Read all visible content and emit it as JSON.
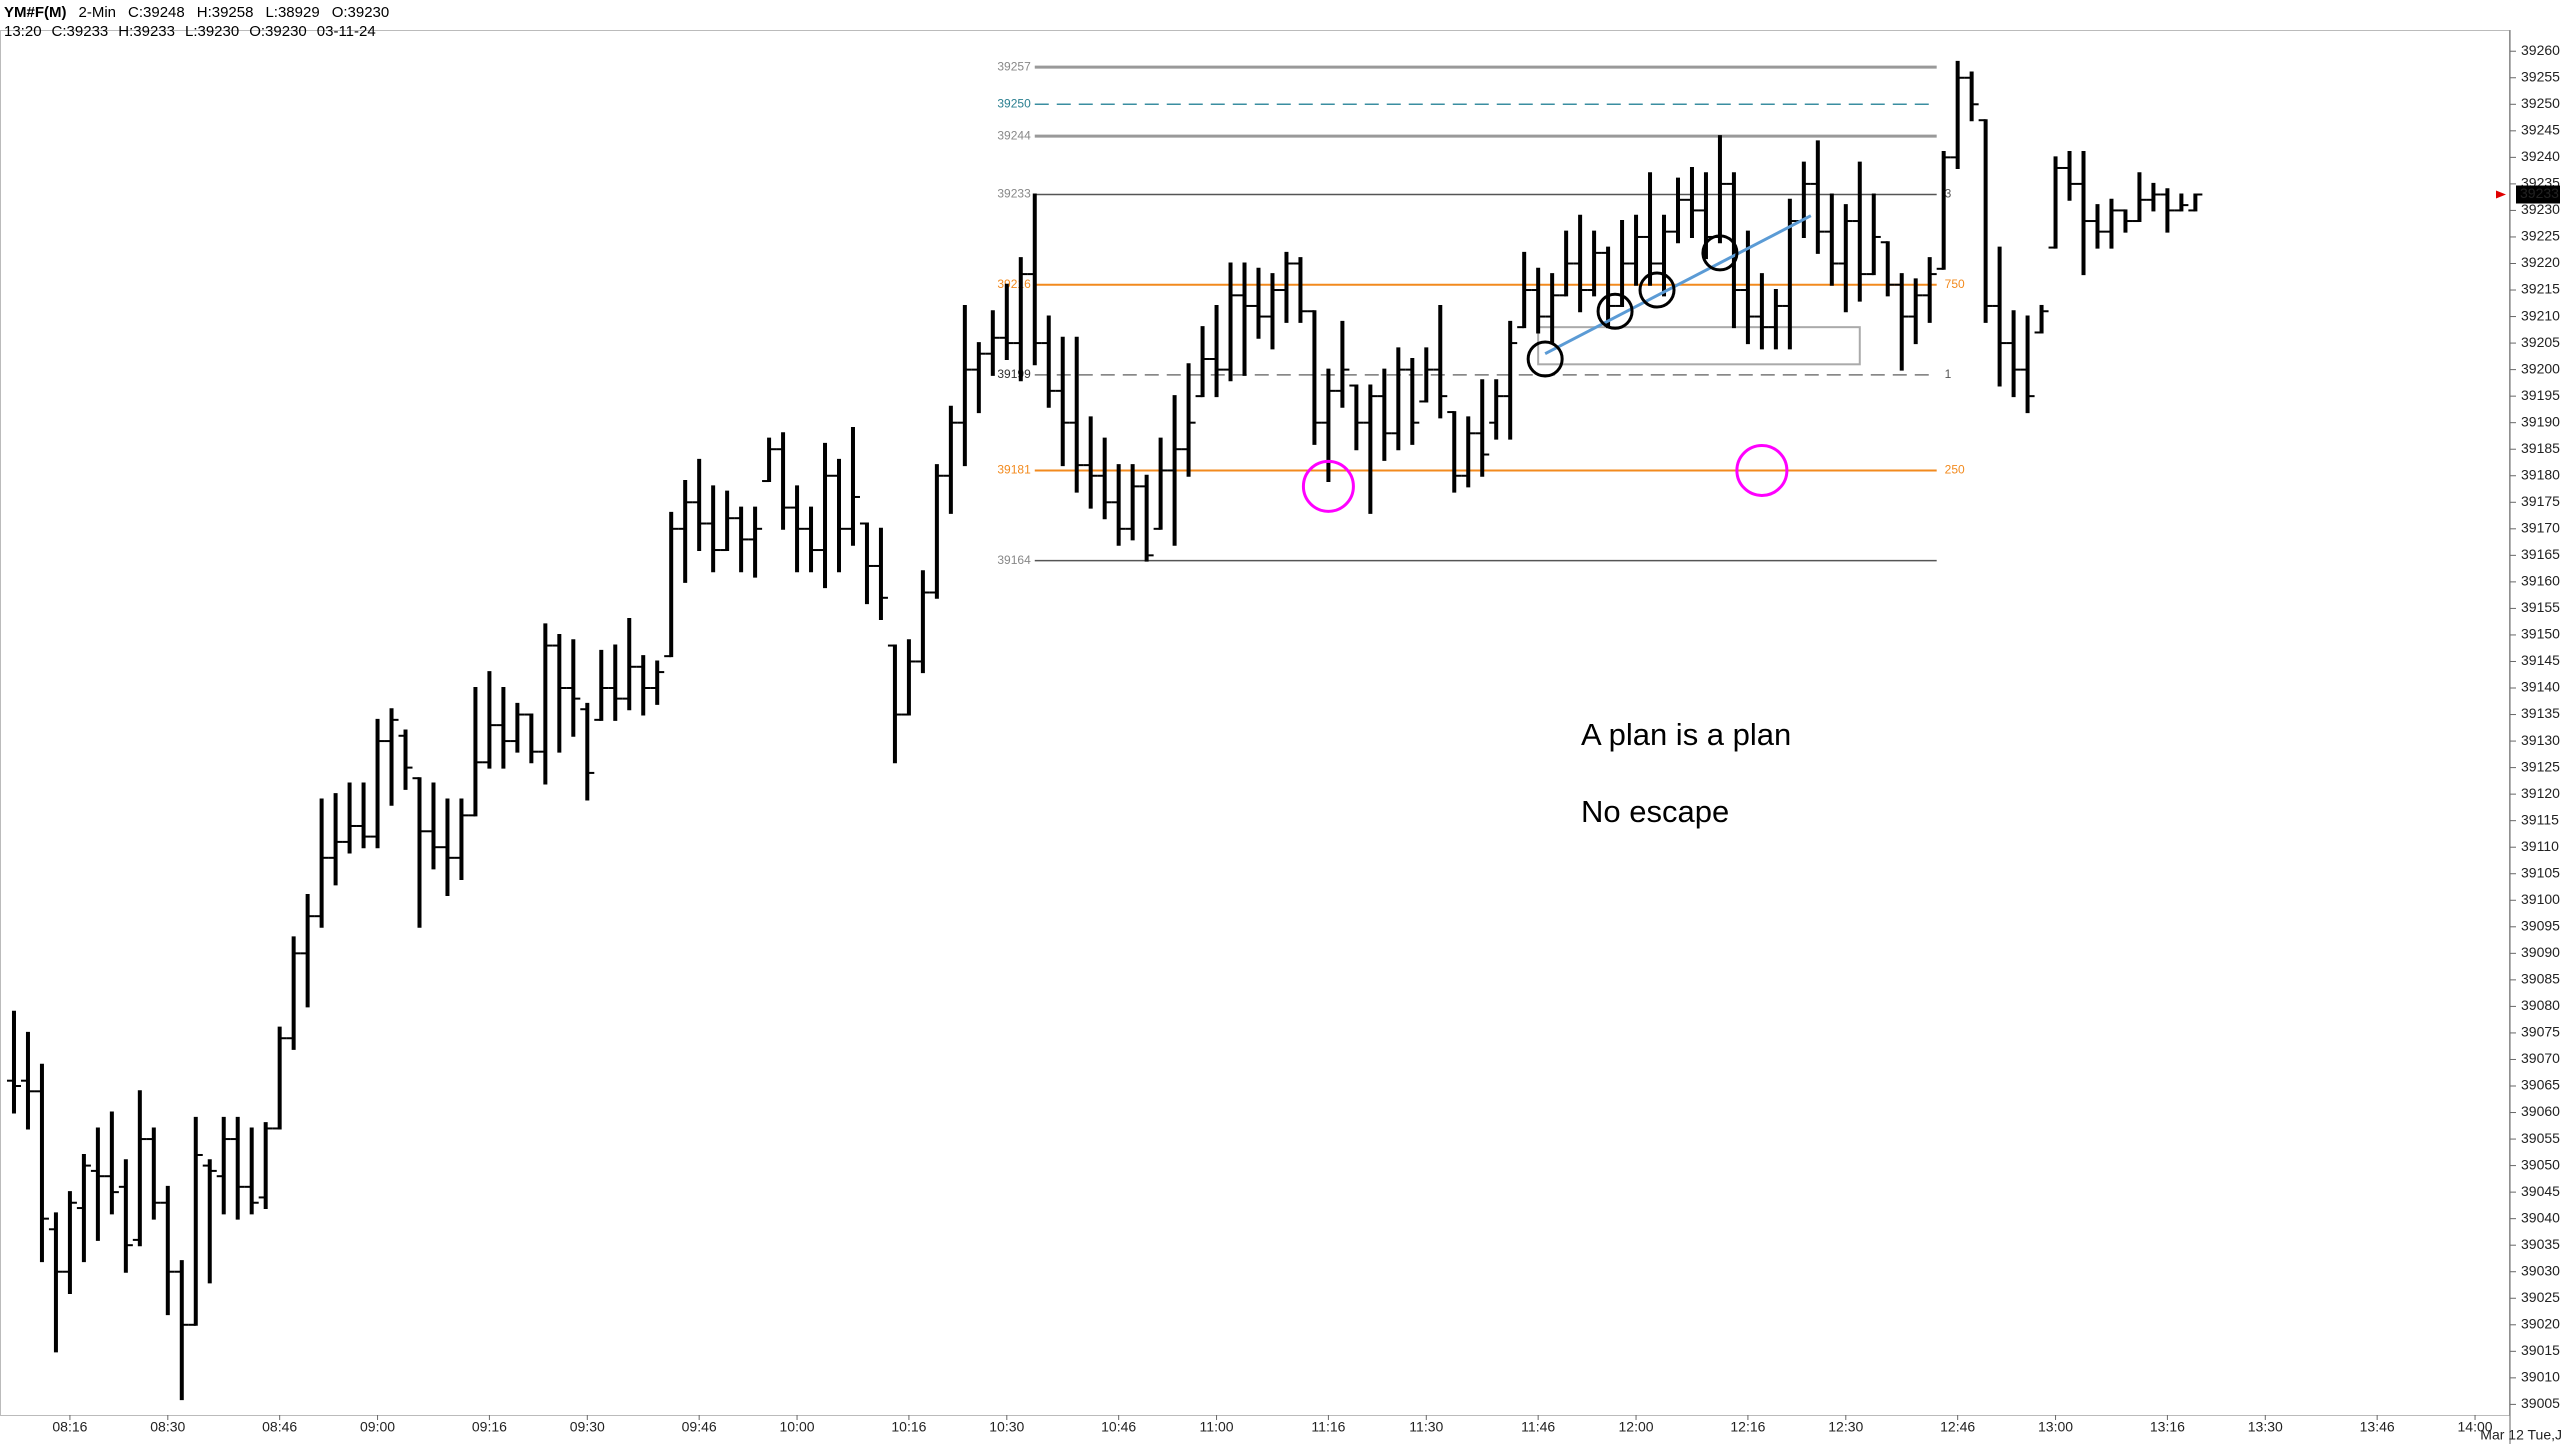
{
  "chart_data": {
    "type": "ohlc",
    "header": {
      "line1": [
        "YM#F(M)",
        "2-Min",
        "C:39248",
        "H:39258",
        "L:38929",
        "O:39230"
      ],
      "line2": [
        "13:20",
        "C:39233",
        "H:39233",
        "L:39230",
        "O:39230",
        "03-11-24"
      ]
    },
    "x": [
      488,
      490,
      492,
      494,
      496,
      498,
      500,
      502,
      504,
      506,
      508,
      510,
      512,
      514,
      516,
      518,
      520,
      522,
      524,
      526,
      528,
      530,
      532,
      534,
      536,
      538,
      540,
      542,
      544,
      546,
      548,
      550,
      552,
      554,
      556,
      558,
      560,
      562,
      564,
      566,
      568,
      570,
      572,
      574,
      576,
      578,
      580,
      582,
      584,
      586,
      588,
      590,
      592,
      594,
      596,
      598,
      600,
      602,
      604,
      606,
      608,
      610,
      612,
      614,
      616,
      618,
      620,
      622,
      624,
      626,
      628,
      630,
      632,
      634,
      636,
      638,
      640,
      642,
      644,
      646,
      648,
      650,
      652,
      654,
      656,
      658,
      660,
      662,
      664,
      666,
      668,
      670,
      672,
      674,
      676,
      678,
      680,
      682,
      684,
      686,
      688,
      690,
      692,
      694,
      696,
      698,
      700,
      702,
      704,
      706,
      708,
      710,
      712,
      714,
      716,
      718,
      720,
      722,
      724,
      726,
      728,
      730,
      732,
      734,
      736,
      738,
      740,
      742,
      744,
      746,
      748,
      750,
      752,
      754,
      756,
      758,
      760,
      762,
      764,
      766,
      768,
      770,
      772,
      774,
      776,
      778,
      780,
      782,
      784,
      786,
      788,
      790,
      792,
      794,
      796,
      798,
      800
    ],
    "bars": [
      [
        39066,
        39079,
        39060,
        39065
      ],
      [
        39066,
        39075,
        39057,
        39064
      ],
      [
        39064,
        39069,
        39032,
        39040
      ],
      [
        39038,
        39041,
        39015,
        39030
      ],
      [
        39030,
        39045,
        39026,
        39043
      ],
      [
        39042,
        39052,
        39032,
        39050
      ],
      [
        39049,
        39057,
        39036,
        39048
      ],
      [
        39048,
        39060,
        39041,
        39045
      ],
      [
        39046,
        39051,
        39030,
        39035
      ],
      [
        39036,
        39064,
        39035,
        39055
      ],
      [
        39055,
        39057,
        39040,
        39043
      ],
      [
        39043,
        39046,
        39022,
        39030
      ],
      [
        39030,
        39032,
        39006,
        39020
      ],
      [
        39020,
        39059,
        39020,
        39052
      ],
      [
        39050,
        39051,
        39028,
        39049
      ],
      [
        39048,
        39059,
        39041,
        39055
      ],
      [
        39055,
        39059,
        39040,
        39046
      ],
      [
        39046,
        39057,
        39041,
        39043
      ],
      [
        39044,
        39058,
        39042,
        39057
      ],
      [
        39057,
        39076,
        39057,
        39074
      ],
      [
        39074,
        39093,
        39072,
        39090
      ],
      [
        39090,
        39101,
        39080,
        39097
      ],
      [
        39097,
        39119,
        39095,
        39108
      ],
      [
        39108,
        39120,
        39103,
        39111
      ],
      [
        39111,
        39122,
        39109,
        39114
      ],
      [
        39114,
        39122,
        39110,
        39112
      ],
      [
        39112,
        39134,
        39110,
        39130
      ],
      [
        39130,
        39136,
        39118,
        39134
      ],
      [
        39131,
        39132,
        39121,
        39125
      ],
      [
        39123,
        39123,
        39095,
        39113
      ],
      [
        39113,
        39122,
        39106,
        39110
      ],
      [
        39110,
        39119,
        39101,
        39108
      ],
      [
        39108,
        39119,
        39104,
        39116
      ],
      [
        39116,
        39140,
        39116,
        39126
      ],
      [
        39126,
        39143,
        39125,
        39133
      ],
      [
        39133,
        39140,
        39125,
        39130
      ],
      [
        39130,
        39137,
        39128,
        39135
      ],
      [
        39135,
        39135,
        39126,
        39128
      ],
      [
        39128,
        39152,
        39122,
        39148
      ],
      [
        39148,
        39150,
        39128,
        39140
      ],
      [
        39140,
        39149,
        39131,
        39138
      ],
      [
        39136,
        39137,
        39119,
        39124
      ],
      [
        39134,
        39147,
        39134,
        39140
      ],
      [
        39140,
        39148,
        39134,
        39138
      ],
      [
        39138,
        39153,
        39136,
        39144
      ],
      [
        39144,
        39146,
        39135,
        39140
      ],
      [
        39140,
        39145,
        39137,
        39143
      ],
      [
        39146,
        39173,
        39146,
        39170
      ],
      [
        39170,
        39179,
        39160,
        39175
      ],
      [
        39175,
        39183,
        39166,
        39171
      ],
      [
        39171,
        39178,
        39162,
        39166
      ],
      [
        39166,
        39177,
        39166,
        39172
      ],
      [
        39172,
        39174,
        39162,
        39168
      ],
      [
        39168,
        39174,
        39161,
        39170
      ],
      [
        39179,
        39187,
        39179,
        39185
      ],
      [
        39185,
        39188,
        39170,
        39174
      ],
      [
        39174,
        39178,
        39162,
        39170
      ],
      [
        39170,
        39174,
        39162,
        39166
      ],
      [
        39166,
        39186,
        39159,
        39180
      ],
      [
        39180,
        39183,
        39162,
        39170
      ],
      [
        39170,
        39189,
        39167,
        39176
      ],
      [
        39171,
        39171,
        39156,
        39163
      ],
      [
        39163,
        39170,
        39153,
        39157
      ],
      [
        39148,
        39148,
        39126,
        39135
      ],
      [
        39135,
        39149,
        39135,
        39145
      ],
      [
        39145,
        39162,
        39143,
        39158
      ],
      [
        39158,
        39182,
        39157,
        39180
      ],
      [
        39180,
        39193,
        39173,
        39190
      ],
      [
        39190,
        39212,
        39182,
        39200
      ],
      [
        39200,
        39205,
        39192,
        39203
      ],
      [
        39203,
        39211,
        39199,
        39206
      ],
      [
        39206,
        39216,
        39202,
        39205
      ],
      [
        39205,
        39221,
        39198,
        39218
      ],
      [
        39218,
        39233,
        39201,
        39205
      ],
      [
        39205,
        39210,
        39193,
        39196
      ],
      [
        39196,
        39206,
        39182,
        39190
      ],
      [
        39190,
        39206,
        39177,
        39182
      ],
      [
        39182,
        39191,
        39174,
        39180
      ],
      [
        39180,
        39187,
        39172,
        39175
      ],
      [
        39175,
        39182,
        39167,
        39170
      ],
      [
        39170,
        39182,
        39168,
        39178
      ],
      [
        39178,
        39180,
        39164,
        39165
      ],
      [
        39170,
        39187,
        39170,
        39181
      ],
      [
        39181,
        39195,
        39167,
        39185
      ],
      [
        39185,
        39201,
        39180,
        39190
      ],
      [
        39195,
        39208,
        39195,
        39202
      ],
      [
        39202,
        39212,
        39195,
        39200
      ],
      [
        39200,
        39220,
        39198,
        39214
      ],
      [
        39214,
        39220,
        39199,
        39212
      ],
      [
        39212,
        39219,
        39206,
        39210
      ],
      [
        39210,
        39218,
        39204,
        39215
      ],
      [
        39215,
        39222,
        39209,
        39220
      ],
      [
        39220,
        39221,
        39209,
        39211
      ],
      [
        39211,
        39211,
        39186,
        39190
      ],
      [
        39190,
        39200,
        39179,
        39196
      ],
      [
        39196,
        39209,
        39193,
        39200
      ],
      [
        39197,
        39197,
        39185,
        39190
      ],
      [
        39190,
        39197,
        39173,
        39195
      ],
      [
        39195,
        39200,
        39183,
        39188
      ],
      [
        39188,
        39204,
        39185,
        39200
      ],
      [
        39200,
        39202,
        39186,
        39190
      ],
      [
        39194,
        39204,
        39194,
        39200
      ],
      [
        39200,
        39212,
        39191,
        39195
      ],
      [
        39192,
        39192,
        39177,
        39180
      ],
      [
        39180,
        39191,
        39178,
        39188
      ],
      [
        39188,
        39198,
        39180,
        39184
      ],
      [
        39190,
        39198,
        39187,
        39195
      ],
      [
        39195,
        39209,
        39187,
        39205
      ],
      [
        39208,
        39222,
        39208,
        39215
      ],
      [
        39215,
        39219,
        39207,
        39210
      ],
      [
        39210,
        39218,
        39205,
        39214
      ],
      [
        39214,
        39226,
        39214,
        39220
      ],
      [
        39220,
        39229,
        39211,
        39215
      ],
      [
        39215,
        39226,
        39214,
        39222
      ],
      [
        39222,
        39223,
        39208,
        39212
      ],
      [
        39212,
        39228,
        39212,
        39220
      ],
      [
        39220,
        39229,
        39216,
        39225
      ],
      [
        39225,
        39237,
        39216,
        39220
      ],
      [
        39220,
        39229,
        39214,
        39226
      ],
      [
        39226,
        39236,
        39224,
        39232
      ],
      [
        39232,
        39238,
        39225,
        39230
      ],
      [
        39230,
        39237,
        39221,
        39225
      ],
      [
        39225,
        39244,
        39224,
        39235
      ],
      [
        39235,
        39237,
        39208,
        39215
      ],
      [
        39215,
        39226,
        39205,
        39210
      ],
      [
        39210,
        39218,
        39204,
        39208
      ],
      [
        39208,
        39215,
        39204,
        39212
      ],
      [
        39212,
        39232,
        39204,
        39228
      ],
      [
        39228,
        39239,
        39225,
        39235
      ],
      [
        39235,
        39243,
        39222,
        39226
      ],
      [
        39226,
        39233,
        39216,
        39220
      ],
      [
        39220,
        39231,
        39211,
        39228
      ],
      [
        39228,
        39239,
        39213,
        39218
      ],
      [
        39218,
        39233,
        39218,
        39225
      ],
      [
        39224,
        39224,
        39214,
        39216
      ],
      [
        39216,
        39218,
        39200,
        39210
      ],
      [
        39210,
        39217,
        39205,
        39214
      ],
      [
        39214,
        39221,
        39209,
        39218
      ],
      [
        39219,
        39241,
        39219,
        39240
      ],
      [
        39240,
        39258,
        39238,
        39255
      ],
      [
        39255,
        39256,
        39247,
        39250
      ],
      [
        39247,
        39247,
        39209,
        39212
      ],
      [
        39212,
        39223,
        39197,
        39205
      ],
      [
        39205,
        39211,
        39195,
        39200
      ],
      [
        39200,
        39210,
        39192,
        39195
      ],
      [
        39207,
        39212,
        39207,
        39211
      ],
      [
        39223,
        39240,
        39223,
        39238
      ],
      [
        39238,
        39241,
        39232,
        39235
      ],
      [
        39235,
        39241,
        39218,
        39228
      ],
      [
        39228,
        39231,
        39223,
        39226
      ],
      [
        39226,
        39232,
        39223,
        39230
      ],
      [
        39230,
        39230,
        39226,
        39228
      ],
      [
        39228,
        39237,
        39228,
        39232
      ],
      [
        39232,
        39235,
        39230,
        39233
      ],
      [
        39233,
        39234,
        39226,
        39230
      ],
      [
        39230,
        39233,
        39230,
        39231
      ],
      [
        39230,
        39233,
        39230,
        39233
      ]
    ],
    "color": "#000000",
    "xlim": [
      486,
      845
    ],
    "xticks": [
      {
        "value": 496,
        "label": "08:16"
      },
      {
        "value": 510,
        "label": "08:30"
      },
      {
        "value": 526,
        "label": "08:46"
      },
      {
        "value": 540,
        "label": "09:00"
      },
      {
        "value": 556,
        "label": "09:16"
      },
      {
        "value": 570,
        "label": "09:30"
      },
      {
        "value": 586,
        "label": "09:46"
      },
      {
        "value": 600,
        "label": "10:00"
      },
      {
        "value": 616,
        "label": "10:16"
      },
      {
        "value": 630,
        "label": "10:30"
      },
      {
        "value": 646,
        "label": "10:46"
      },
      {
        "value": 660,
        "label": "11:00"
      },
      {
        "value": 676,
        "label": "11:16"
      },
      {
        "value": 690,
        "label": "11:30"
      },
      {
        "value": 706,
        "label": "11:46"
      },
      {
        "value": 720,
        "label": "12:00"
      },
      {
        "value": 736,
        "label": "12:16"
      },
      {
        "value": 750,
        "label": "12:30"
      },
      {
        "value": 766,
        "label": "12:46"
      },
      {
        "value": 780,
        "label": "13:00"
      },
      {
        "value": 796,
        "label": "13:16"
      },
      {
        "value": 810,
        "label": "13:30"
      },
      {
        "value": 826,
        "label": "13:46"
      },
      {
        "value": 840,
        "label": "14:00"
      }
    ],
    "ylim": [
      39003,
      39264
    ],
    "yticks": [
      39005,
      39010,
      39015,
      39020,
      39025,
      39030,
      39035,
      39040,
      39045,
      39050,
      39055,
      39060,
      39065,
      39070,
      39075,
      39080,
      39085,
      39090,
      39095,
      39100,
      39105,
      39110,
      39115,
      39120,
      39125,
      39130,
      39135,
      39140,
      39145,
      39150,
      39155,
      39160,
      39165,
      39170,
      39175,
      39180,
      39185,
      39190,
      39195,
      39200,
      39205,
      39210,
      39215,
      39220,
      39225,
      39230,
      39235,
      39240,
      39245,
      39250,
      39255,
      39260
    ],
    "last_price": 39233,
    "date_label": "Mar 12 Tue,J",
    "level_span": [
      634,
      763
    ],
    "levels": [
      {
        "value": 39257,
        "color": "#999999",
        "width": 3,
        "dash": false
      },
      {
        "value": 39250,
        "color": "#3a8ea0",
        "width": 1.5,
        "dash": true,
        "label_color": "#2a7f90"
      },
      {
        "value": 39244,
        "color": "#999999",
        "width": 3,
        "dash": false
      },
      {
        "value": 39233,
        "color": "#555555",
        "width": 1.5,
        "dash": false,
        "tag": "3"
      },
      {
        "value": 39216,
        "color": "#f28a1e",
        "width": 2,
        "dash": false,
        "tag": "750"
      },
      {
        "value": 39199,
        "color": "#777777",
        "width": 1.5,
        "dash": true,
        "tag": "1",
        "label_color": "#333333"
      },
      {
        "value": 39181,
        "color": "#f28a1e",
        "width": 2,
        "dash": false,
        "tag": "250"
      },
      {
        "value": 39164,
        "color": "#555555",
        "width": 1.5,
        "dash": false
      }
    ],
    "circles": [
      {
        "x": 707,
        "y": 39202,
        "color": "#000000",
        "r": 17
      },
      {
        "x": 717,
        "y": 39211,
        "color": "#000000",
        "r": 17
      },
      {
        "x": 723,
        "y": 39215,
        "color": "#000000",
        "r": 17
      },
      {
        "x": 732,
        "y": 39222,
        "color": "#000000",
        "r": 17
      },
      {
        "x": 676,
        "y": 39178,
        "color": "#ff00ff",
        "r": 25
      },
      {
        "x": 738,
        "y": 39181,
        "color": "#ff00ff",
        "r": 25
      }
    ],
    "trendline": {
      "x": [
        707,
        745
      ],
      "y": [
        39203,
        39229
      ],
      "color": "#5b9bd5"
    },
    "box": {
      "x": [
        706,
        752
      ],
      "y": [
        39208,
        39201
      ],
      "color": "#aaaaaa"
    },
    "notes": [
      "A plan is a plan",
      "No escape"
    ]
  }
}
